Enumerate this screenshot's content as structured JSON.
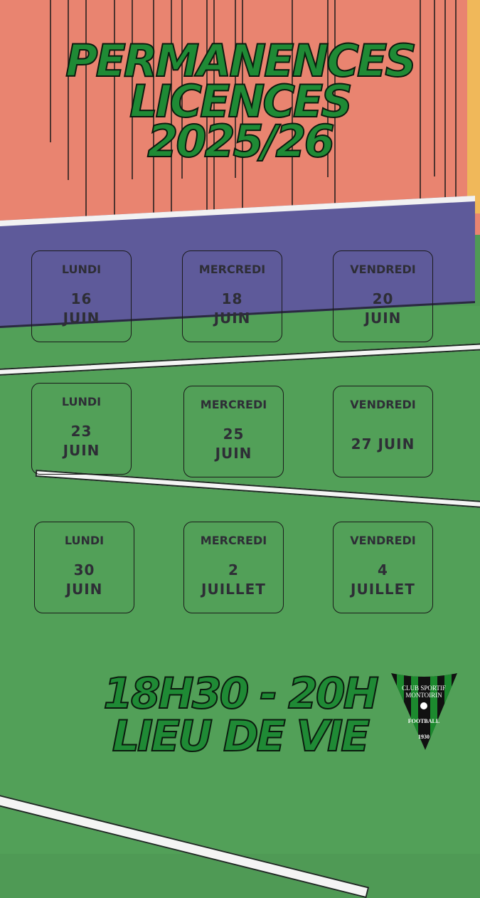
{
  "title": {
    "line1": "PERMANENCES",
    "line2": "LICENCES",
    "line3": "2025/26"
  },
  "schedule": [
    {
      "day": "LUNDI",
      "l1": "16",
      "l2": "JUIN"
    },
    {
      "day": "MERCREDI",
      "l1": "18",
      "l2": "JUIN"
    },
    {
      "day": "VENDREDI",
      "l1": "20",
      "l2": "JUIN"
    },
    {
      "day": "LUNDI",
      "l1": "23",
      "l2": "JUIN"
    },
    {
      "day": "MERCREDI",
      "l1": "25",
      "l2": "JUIN"
    },
    {
      "day": "VENDREDI",
      "l1": "27 JUIN",
      "l2": ""
    },
    {
      "day": "LUNDI",
      "l1": "30",
      "l2": "JUIN"
    },
    {
      "day": "MERCREDI",
      "l1": "2",
      "l2": "JUILLET"
    },
    {
      "day": "VENDREDI",
      "l1": "4",
      "l2": "JUILLET"
    }
  ],
  "footer": {
    "hours": "18H30 - 20H",
    "place": "LIEU DE VIE"
  },
  "logo": {
    "line1": "CLUB SPORTIF",
    "line2": "MONTOIRIN",
    "line3": "FOOTBALL",
    "line4": "1930"
  },
  "colors": {
    "title_green": "#1f8a35",
    "wall": "#e98470",
    "band": "#5e5a9a",
    "field": "#52a058"
  }
}
